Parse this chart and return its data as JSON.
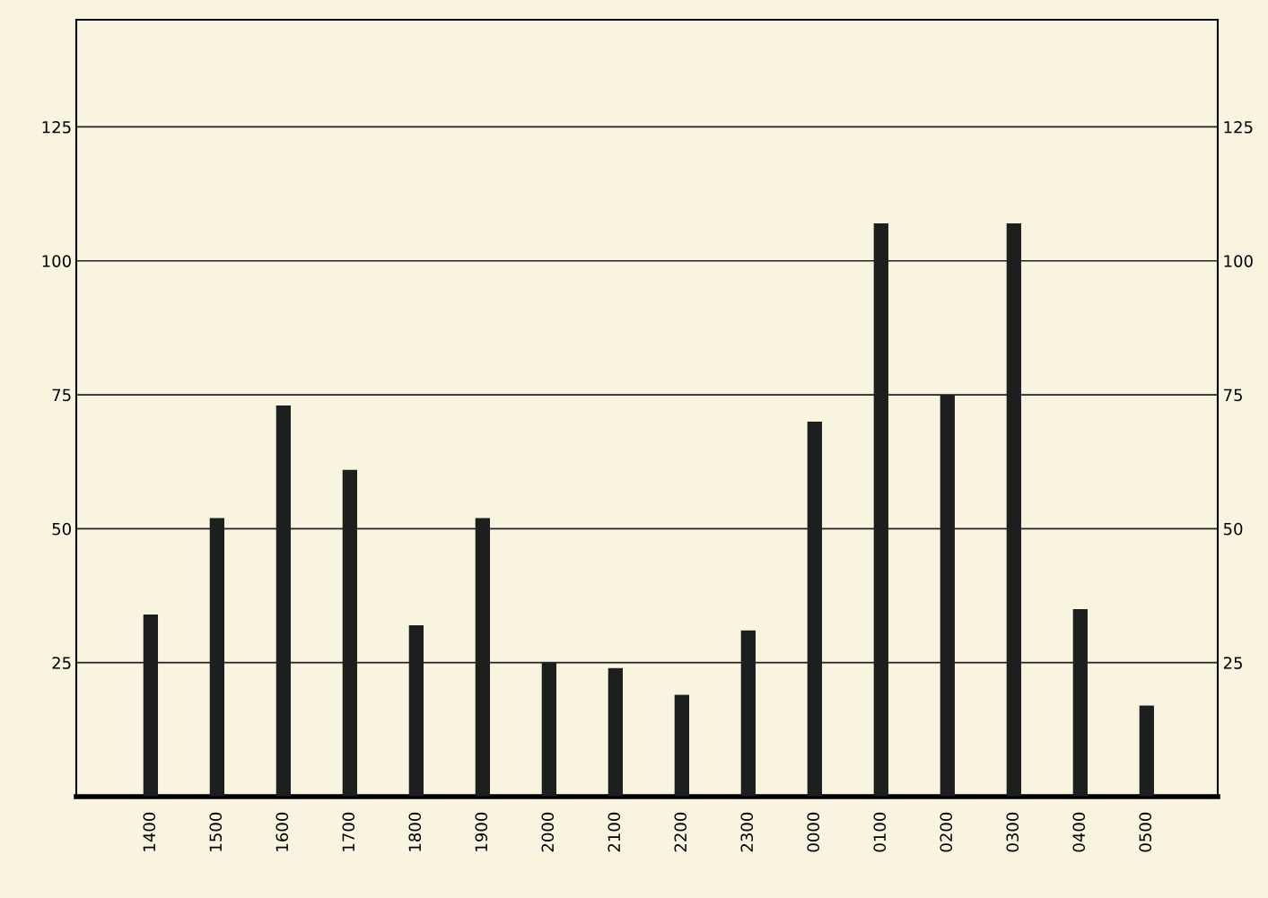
{
  "chart_data": {
    "type": "bar",
    "categories": [
      "1400",
      "1500",
      "1600",
      "1700",
      "1800",
      "1900",
      "2000",
      "2100",
      "2200",
      "2300",
      "0000",
      "0100",
      "0200",
      "0300",
      "0400",
      "0500"
    ],
    "values": [
      34,
      52,
      73,
      61,
      32,
      52,
      25,
      24,
      19,
      31,
      70,
      107,
      75,
      107,
      35,
      17
    ],
    "color": "#1c1f1e",
    "ylim": [
      0,
      145
    ],
    "yticks": [
      25,
      50,
      75,
      100,
      125
    ],
    "y2lim": [
      0,
      145
    ],
    "y2ticks": [
      25,
      50,
      75,
      100,
      125
    ],
    "grid": "y"
  }
}
